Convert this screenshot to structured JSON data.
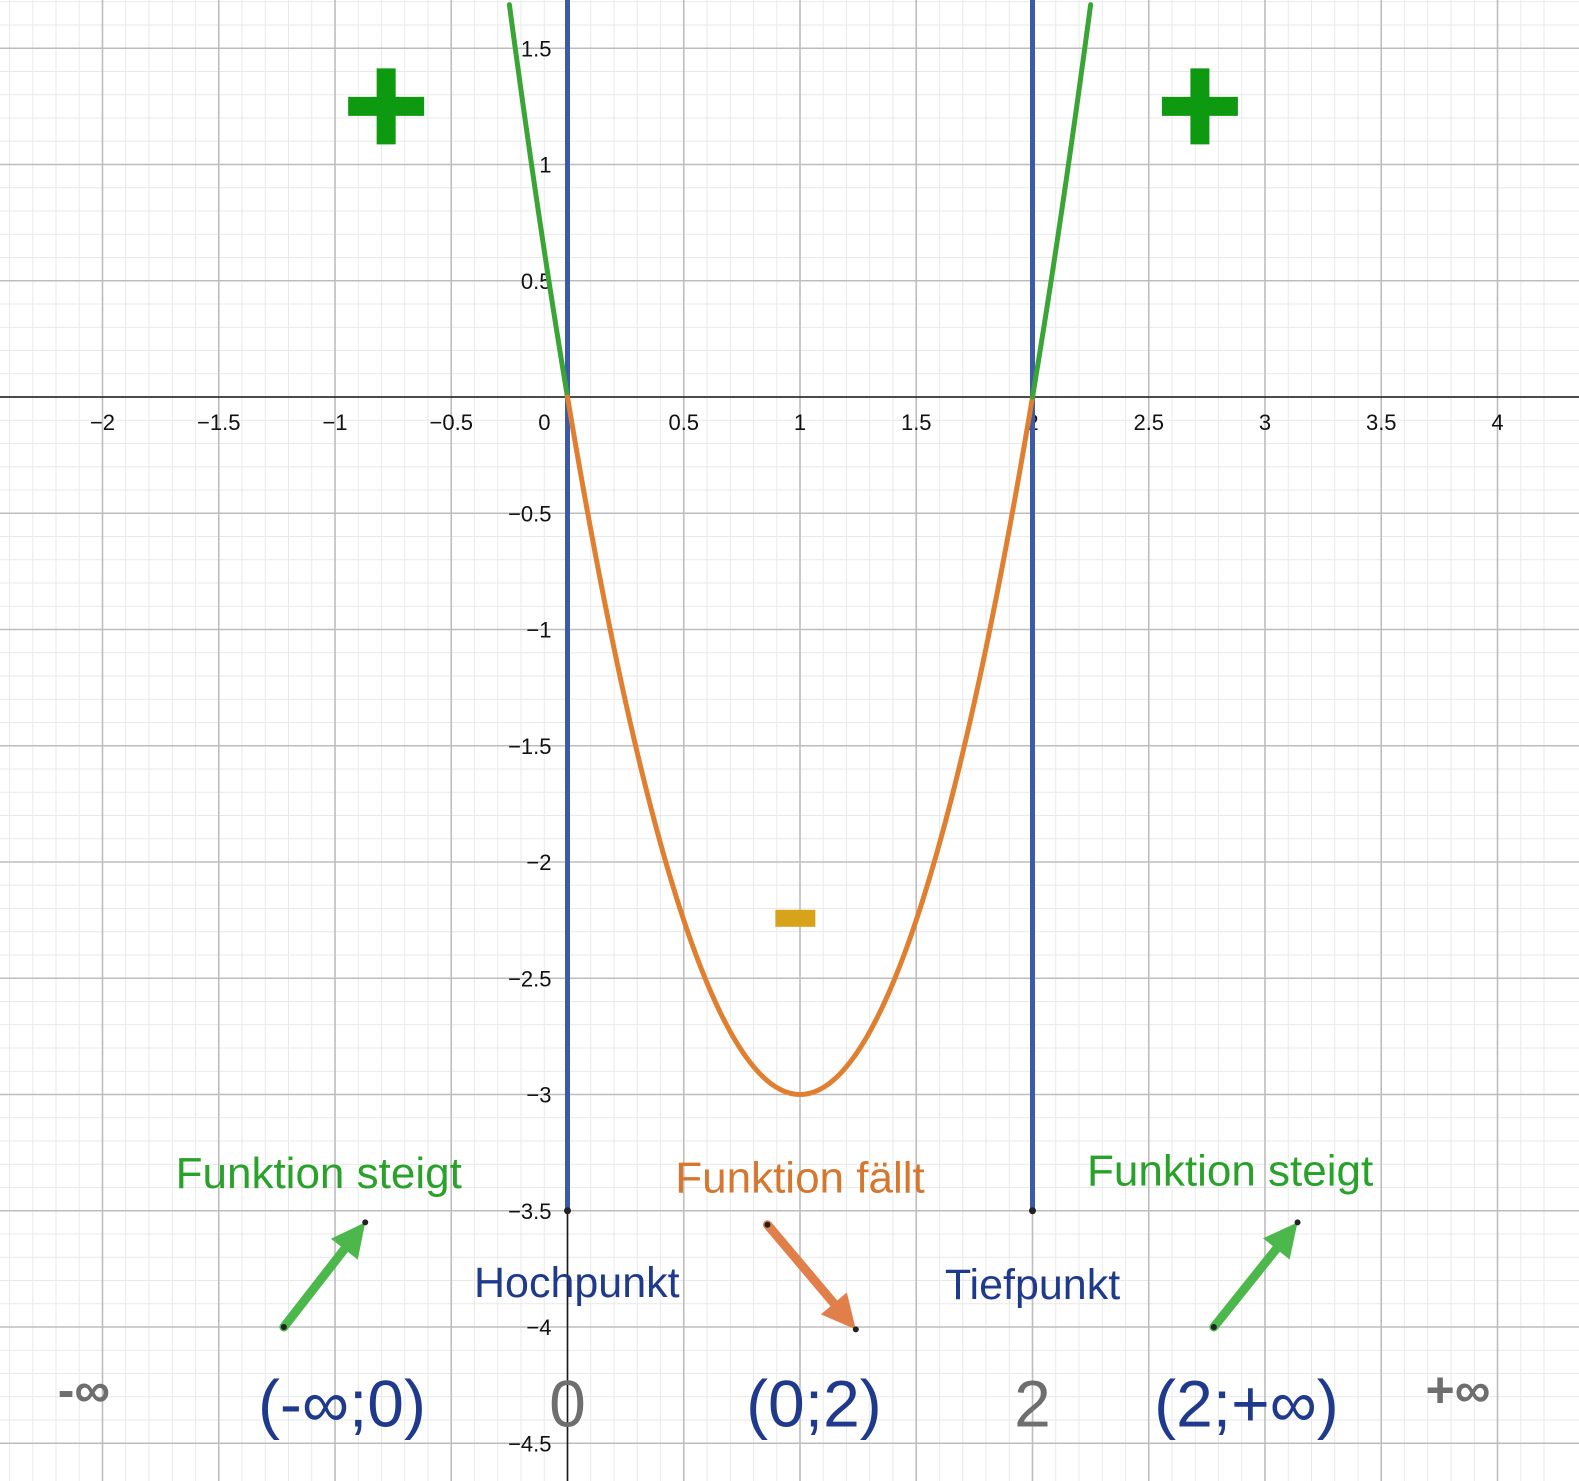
{
  "chart_data": {
    "type": "line",
    "title": "",
    "xlabel": "",
    "ylabel": "",
    "xlim": [
      -2.45,
      4.3
    ],
    "ylim": [
      -4.6,
      1.7
    ],
    "grid": true,
    "x_ticks": [
      {
        "value": -2,
        "label": "−2"
      },
      {
        "value": -1.5,
        "label": "−1.5"
      },
      {
        "value": -1,
        "label": "−1"
      },
      {
        "value": -0.5,
        "label": "−0.5"
      },
      {
        "value": 0,
        "label": "0"
      },
      {
        "value": 0.5,
        "label": "0.5"
      },
      {
        "value": 1,
        "label": "1"
      },
      {
        "value": 1.5,
        "label": "1.5"
      },
      {
        "value": 2,
        "label": "2"
      },
      {
        "value": 2.5,
        "label": "2.5"
      },
      {
        "value": 3,
        "label": "3"
      },
      {
        "value": 3.5,
        "label": "3.5"
      },
      {
        "value": 4,
        "label": "4"
      }
    ],
    "y_ticks": [
      {
        "value": 1.5,
        "label": "1.5"
      },
      {
        "value": 1,
        "label": "1"
      },
      {
        "value": 0.5,
        "label": "0.5"
      },
      {
        "value": -0.5,
        "label": "−0.5"
      },
      {
        "value": -1,
        "label": "−1"
      },
      {
        "value": -1.5,
        "label": "−1.5"
      },
      {
        "value": -2,
        "label": "−2"
      },
      {
        "value": -2.5,
        "label": "−2.5"
      },
      {
        "value": -3,
        "label": "−3"
      },
      {
        "value": -3.5,
        "label": "−3.5"
      },
      {
        "value": -4,
        "label": "−4"
      },
      {
        "value": -4.5,
        "label": "−4.5"
      }
    ],
    "series": [
      {
        "function": "3x^2 - 6x",
        "x": [
          -0.25,
          0
        ],
        "color": "#3aa535"
      },
      {
        "function": "3x^2 - 6x",
        "x": [
          0,
          2
        ],
        "color": "#e07f30"
      },
      {
        "function": "3x^2 - 6x",
        "x": [
          2,
          2.25
        ],
        "color": "#3aa535"
      }
    ],
    "vertical_lines": [
      {
        "x": 0,
        "y_from": -3.5,
        "y_to": 1.7,
        "color": "#3b5ba8"
      },
      {
        "x": 2,
        "y_from": -3.5,
        "y_to": 1.7,
        "color": "#3b5ba8"
      }
    ],
    "annotations": [
      {
        "text": "+",
        "x": -0.78,
        "y": 1.25,
        "color": "#0d9a10"
      },
      {
        "text": "+",
        "x": 2.72,
        "y": 1.25,
        "color": "#0d9a10"
      },
      {
        "text": "-",
        "x": 0.98,
        "y": -2.24,
        "color": "#d7a31a"
      },
      {
        "text": "Funktion steigt",
        "x": -1.07,
        "y": -3.34,
        "color": "#2aa12a"
      },
      {
        "text": "Funktion fällt",
        "x": 1.0,
        "y": -3.36,
        "color": "#d5772e"
      },
      {
        "text": "Funktion steigt",
        "x": 2.85,
        "y": -3.33,
        "color": "#2aa12a"
      },
      {
        "text": "Hochpunkt",
        "x": 0.04,
        "y": -3.81,
        "color": "#1f3a8c"
      },
      {
        "text": "Tiefpunkt",
        "x": 2.0,
        "y": -3.82,
        "color": "#1f3a8c"
      },
      {
        "text": "-∞",
        "x": -2.08,
        "y": -4.27,
        "color": "#6e6e6e"
      },
      {
        "text": "(-∞;0)",
        "x": -0.97,
        "y": -4.33,
        "color": "#1f3a8c"
      },
      {
        "text": "0",
        "x": 0,
        "y": -4.33,
        "color": "#6e6e6e"
      },
      {
        "text": "(0;2)",
        "x": 1.06,
        "y": -4.33,
        "color": "#1f3a8c"
      },
      {
        "text": "2",
        "x": 2.0,
        "y": -4.33,
        "color": "#6e6e6e"
      },
      {
        "text": "(2;+∞)",
        "x": 2.92,
        "y": -4.33,
        "color": "#1f3a8c"
      },
      {
        "text": "+∞",
        "x": 3.83,
        "y": -4.27,
        "color": "#6e6e6e"
      }
    ],
    "arrows": [
      {
        "from": [
          -1.22,
          -4.0
        ],
        "to": [
          -0.87,
          -3.55
        ],
        "color": "#4cb84c"
      },
      {
        "from": [
          0.86,
          -3.56
        ],
        "to": [
          1.24,
          -4.01
        ],
        "color": "#e07f4a"
      },
      {
        "from": [
          2.78,
          -4.0
        ],
        "to": [
          3.14,
          -3.55
        ],
        "color": "#4cb84c"
      }
    ]
  }
}
